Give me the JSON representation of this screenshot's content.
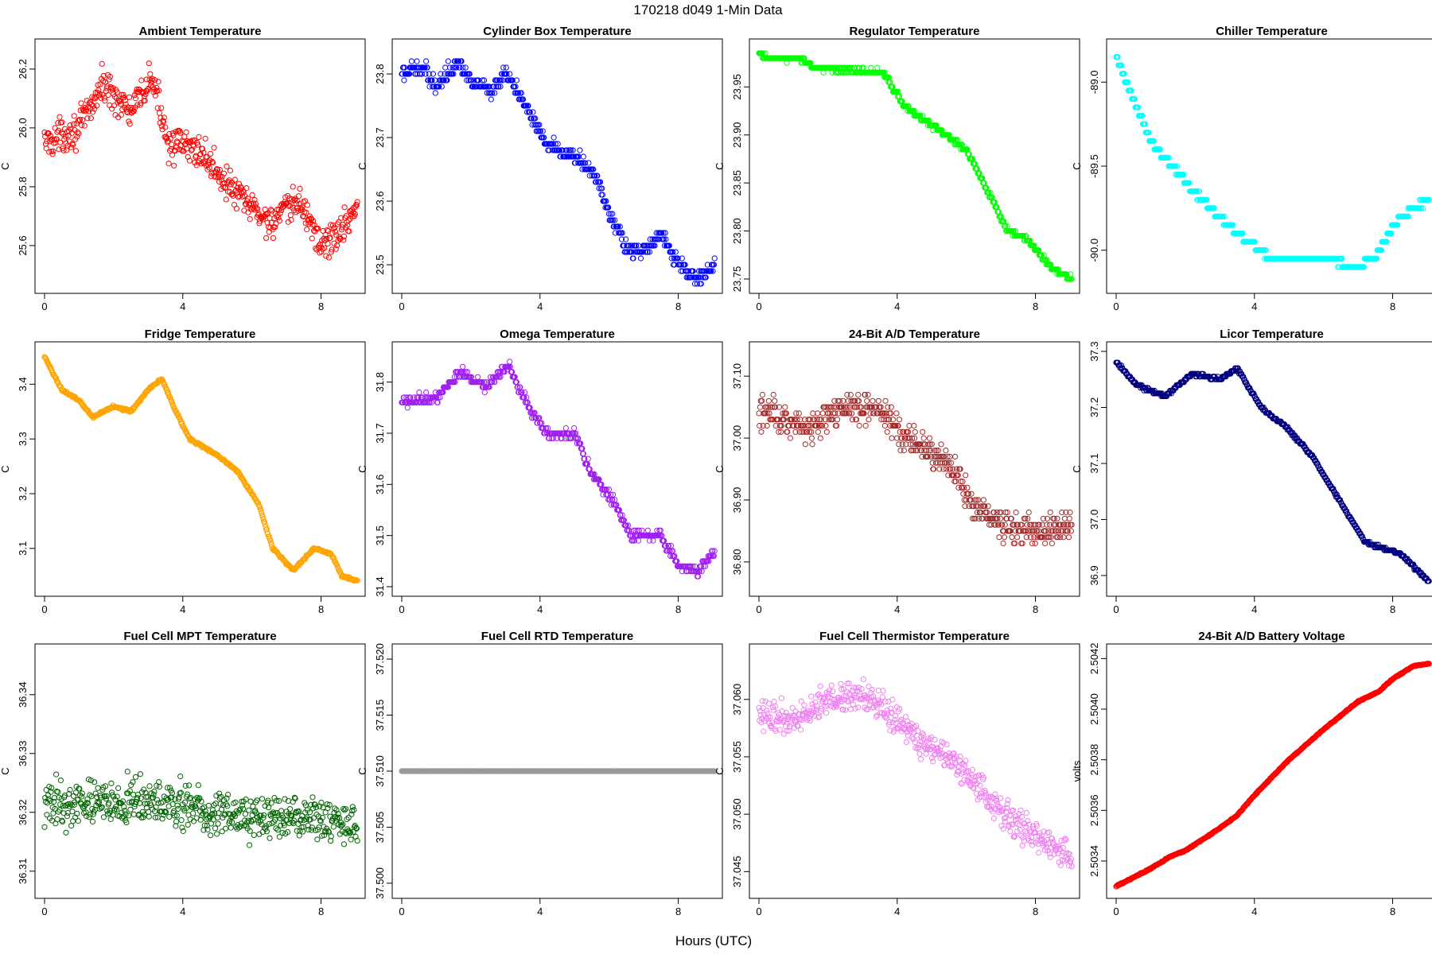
{
  "figure": {
    "title": "170218   d049   1-Min Data",
    "xlabel": "Hours (UTC)"
  },
  "chart_data": [
    {
      "type": "scatter",
      "title": "Ambient Temperature",
      "ylabel": "C",
      "color": "#ff0000",
      "xlim": [
        0,
        9
      ],
      "ylim": [
        25.47,
        26.27
      ],
      "xticks": [
        0,
        4,
        8
      ],
      "xtick_labels": [
        "0",
        "4",
        "8"
      ],
      "yticks": [
        25.6,
        25.8,
        26.0,
        26.2
      ],
      "ytick_labels": [
        "25.6",
        "25.8",
        "26.0",
        "26.2"
      ],
      "noise": 0.05,
      "quant": 0,
      "trend": [
        [
          0,
          25.95
        ],
        [
          1,
          26.0
        ],
        [
          1.7,
          26.15
        ],
        [
          2.5,
          26.05
        ],
        [
          3.1,
          26.17
        ],
        [
          3.6,
          25.95
        ],
        [
          4.5,
          25.92
        ],
        [
          5.5,
          25.78
        ],
        [
          6.5,
          25.68
        ],
        [
          7.4,
          25.75
        ],
        [
          8,
          25.6
        ],
        [
          8.6,
          25.65
        ],
        [
          9.05,
          25.75
        ]
      ]
    },
    {
      "type": "scatter",
      "title": "Cylinder Box Temperature",
      "ylabel": "C",
      "color": "#0000ff",
      "xlim": [
        0,
        9
      ],
      "ylim": [
        23.47,
        23.84
      ],
      "xticks": [
        0,
        4,
        8
      ],
      "xtick_labels": [
        "0",
        "4",
        "8"
      ],
      "yticks": [
        23.5,
        23.6,
        23.7,
        23.8
      ],
      "ytick_labels": [
        "23.5",
        "23.6",
        "23.7",
        "23.8"
      ],
      "noise": 0.01,
      "quant": 0.01,
      "trend": [
        [
          0,
          23.8
        ],
        [
          0.6,
          23.81
        ],
        [
          1.0,
          23.78
        ],
        [
          1.6,
          23.82
        ],
        [
          2.0,
          23.79
        ],
        [
          2.6,
          23.77
        ],
        [
          3.0,
          23.8
        ],
        [
          3.5,
          23.76
        ],
        [
          4.2,
          23.69
        ],
        [
          5.0,
          23.67
        ],
        [
          5.6,
          23.64
        ],
        [
          6.0,
          23.58
        ],
        [
          6.6,
          23.52
        ],
        [
          7.0,
          23.52
        ],
        [
          7.5,
          23.55
        ],
        [
          8.0,
          23.5
        ],
        [
          8.6,
          23.48
        ],
        [
          9.05,
          23.5
        ]
      ]
    },
    {
      "type": "scatter",
      "title": "Regulator Temperature",
      "ylabel": "C",
      "color": "#00ff00",
      "xlim": [
        0,
        9
      ],
      "ylim": [
        23.745,
        23.99
      ],
      "xticks": [
        0,
        4,
        8
      ],
      "xtick_labels": [
        "0",
        "4",
        "8"
      ],
      "yticks": [
        23.75,
        23.8,
        23.85,
        23.9,
        23.95
      ],
      "ytick_labels": [
        "23.75",
        "23.80",
        "23.85",
        "23.90",
        "23.95"
      ],
      "noise": 0.002,
      "quant": 0.005,
      "trend": [
        [
          0,
          23.985
        ],
        [
          0.2,
          23.98
        ],
        [
          1.2,
          23.98
        ],
        [
          1.6,
          23.97
        ],
        [
          3.6,
          23.965
        ],
        [
          4.2,
          23.93
        ],
        [
          5,
          23.91
        ],
        [
          6,
          23.885
        ],
        [
          7.2,
          23.8
        ],
        [
          7.8,
          23.79
        ],
        [
          8.5,
          23.76
        ],
        [
          9.05,
          23.75
        ]
      ]
    },
    {
      "type": "scatter",
      "title": "Chiller Temperature",
      "ylabel": "C",
      "color": "#00ffff",
      "xlim": [
        0,
        9
      ],
      "ylim": [
        -90.2,
        -88.8
      ],
      "xticks": [
        0,
        4,
        8
      ],
      "xtick_labels": [
        "0",
        "4",
        "8"
      ],
      "yticks": [
        -90.0,
        -89.5,
        -89.0
      ],
      "ytick_labels": [
        "-90.0",
        "-89.5",
        "-89.0"
      ],
      "noise": 0.01,
      "quant": 0.05,
      "trend": [
        [
          0,
          -88.85
        ],
        [
          0.5,
          -89.1
        ],
        [
          1.0,
          -89.35
        ],
        [
          1.6,
          -89.5
        ],
        [
          2.5,
          -89.7
        ],
        [
          3.5,
          -89.9
        ],
        [
          4.5,
          -90.05
        ],
        [
          6.2,
          -90.05
        ],
        [
          6.8,
          -90.1
        ],
        [
          7.5,
          -90.05
        ],
        [
          8,
          -89.85
        ],
        [
          8.6,
          -89.75
        ],
        [
          9.05,
          -89.7
        ]
      ]
    },
    {
      "type": "scatter",
      "title": "Fridge Temperature",
      "ylabel": "C",
      "color": "#ffa500",
      "xlim": [
        0,
        9
      ],
      "ylim": [
        3.03,
        3.46
      ],
      "xticks": [
        0,
        4,
        8
      ],
      "xtick_labels": [
        "0",
        "4",
        "8"
      ],
      "yticks": [
        3.1,
        3.2,
        3.3,
        3.4
      ],
      "ytick_labels": [
        "3.1",
        "3.2",
        "3.3",
        "3.4"
      ],
      "noise": 0.002,
      "quant": 0,
      "trend": [
        [
          0,
          3.45
        ],
        [
          0.5,
          3.39
        ],
        [
          1,
          3.37
        ],
        [
          1.4,
          3.34
        ],
        [
          2,
          3.36
        ],
        [
          2.5,
          3.35
        ],
        [
          3.0,
          3.39
        ],
        [
          3.4,
          3.41
        ],
        [
          3.8,
          3.35
        ],
        [
          4.2,
          3.3
        ],
        [
          5,
          3.27
        ],
        [
          5.6,
          3.24
        ],
        [
          6.2,
          3.18
        ],
        [
          6.6,
          3.1
        ],
        [
          7.2,
          3.06
        ],
        [
          7.8,
          3.1
        ],
        [
          8.3,
          3.09
        ],
        [
          8.6,
          3.05
        ],
        [
          9.05,
          3.04
        ]
      ]
    },
    {
      "type": "scatter",
      "title": "Omega Temperature",
      "ylabel": "C",
      "color": "#a020f0",
      "xlim": [
        0,
        9
      ],
      "ylim": [
        31.4,
        31.86
      ],
      "xticks": [
        0,
        4,
        8
      ],
      "xtick_labels": [
        "0",
        "4",
        "8"
      ],
      "yticks": [
        31.4,
        31.5,
        31.6,
        31.7,
        31.8
      ],
      "ytick_labels": [
        "31.4",
        "31.5",
        "31.6",
        "31.7",
        "31.8"
      ],
      "noise": 0.008,
      "quant": 0.01,
      "trend": [
        [
          0,
          31.76
        ],
        [
          1,
          31.77
        ],
        [
          1.7,
          31.82
        ],
        [
          2.4,
          31.79
        ],
        [
          3.1,
          31.83
        ],
        [
          3.6,
          31.76
        ],
        [
          4.2,
          31.7
        ],
        [
          5,
          31.7
        ],
        [
          5.5,
          31.62
        ],
        [
          6.2,
          31.56
        ],
        [
          6.6,
          31.5
        ],
        [
          7.5,
          31.5
        ],
        [
          8,
          31.44
        ],
        [
          8.6,
          31.43
        ],
        [
          9.05,
          31.47
        ]
      ]
    },
    {
      "type": "scatter",
      "title": "24-Bit A/D Temperature",
      "ylabel": "C",
      "color": "#a52a2a",
      "xlim": [
        0,
        9
      ],
      "ylim": [
        36.76,
        37.14
      ],
      "xticks": [
        0,
        4,
        8
      ],
      "xtick_labels": [
        "0",
        "4",
        "8"
      ],
      "yticks": [
        36.8,
        36.9,
        37.0,
        37.1
      ],
      "ytick_labels": [
        "36.80",
        "36.90",
        "37.00",
        "37.10"
      ],
      "noise": 0.022,
      "quant": 0.01,
      "trend": [
        [
          0,
          37.04
        ],
        [
          1.5,
          37.02
        ],
        [
          2.5,
          37.05
        ],
        [
          3.6,
          37.04
        ],
        [
          4.2,
          37.0
        ],
        [
          5,
          36.98
        ],
        [
          5.6,
          36.95
        ],
        [
          6.2,
          36.89
        ],
        [
          7,
          36.86
        ],
        [
          8,
          36.85
        ],
        [
          9.05,
          36.86
        ]
      ]
    },
    {
      "type": "scatter",
      "title": "Licor Temperature",
      "ylabel": "C",
      "color": "#000080",
      "xlim": [
        0,
        9
      ],
      "ylim": [
        36.88,
        37.3
      ],
      "xticks": [
        0,
        4,
        8
      ],
      "xtick_labels": [
        "0",
        "4",
        "8"
      ],
      "yticks": [
        36.9,
        37.0,
        37.1,
        37.2,
        37.3
      ],
      "ytick_labels": [
        "36.9",
        "37.0",
        "37.1",
        "37.2",
        "37.3"
      ],
      "noise": 0.002,
      "quant": 0.005,
      "trend": [
        [
          0,
          37.28
        ],
        [
          0.6,
          37.24
        ],
        [
          1.4,
          37.22
        ],
        [
          2.2,
          37.26
        ],
        [
          3.0,
          37.25
        ],
        [
          3.5,
          37.27
        ],
        [
          4.2,
          37.2
        ],
        [
          5,
          37.16
        ],
        [
          5.7,
          37.11
        ],
        [
          6.4,
          37.04
        ],
        [
          7.2,
          36.96
        ],
        [
          7.6,
          36.95
        ],
        [
          8.2,
          36.94
        ],
        [
          9.05,
          36.89
        ]
      ]
    },
    {
      "type": "scatter",
      "title": "Fuel Cell MPT Temperature",
      "ylabel": "C",
      "color": "#006400",
      "xlim": [
        0,
        9
      ],
      "ylim": [
        36.307,
        36.347
      ],
      "xticks": [
        0,
        4,
        8
      ],
      "xtick_labels": [
        "0",
        "4",
        "8"
      ],
      "yticks": [
        36.31,
        36.32,
        36.33,
        36.34
      ],
      "ytick_labels": [
        "36.31",
        "36.32",
        "36.33",
        "36.34"
      ],
      "noise": 0.0035,
      "quant": 0,
      "trend": [
        [
          0,
          36.321
        ],
        [
          2,
          36.322
        ],
        [
          4,
          36.321
        ],
        [
          6,
          36.319
        ],
        [
          9.05,
          36.318
        ]
      ]
    },
    {
      "type": "scatter",
      "title": "Fuel Cell RTD Temperature",
      "ylabel": "C",
      "color": "#999999",
      "xlim": [
        0,
        9
      ],
      "ylim": [
        37.4995,
        37.5205
      ],
      "xticks": [
        0,
        4,
        8
      ],
      "xtick_labels": [
        "0",
        "4",
        "8"
      ],
      "yticks": [
        37.5,
        37.505,
        37.51,
        37.515,
        37.52
      ],
      "ytick_labels": [
        "37.500",
        "37.505",
        "37.510",
        "37.515",
        "37.520"
      ],
      "noise": 0,
      "quant": 0,
      "trend": [
        [
          0,
          37.51
        ],
        [
          9.05,
          37.51
        ]
      ]
    },
    {
      "type": "scatter",
      "title": "Fuel Cell Thermistor Temperature",
      "ylabel": "C",
      "color": "#ee82ee",
      "xlim": [
        0,
        9
      ],
      "ylim": [
        37.0435,
        37.064
      ],
      "xticks": [
        0,
        4,
        8
      ],
      "xtick_labels": [
        "0",
        "4",
        "8"
      ],
      "yticks": [
        37.045,
        37.05,
        37.055,
        37.06
      ],
      "ytick_labels": [
        "37.045",
        "37.050",
        "37.055",
        "37.060"
      ],
      "noise": 0.0012,
      "quant": 0,
      "trend": [
        [
          0,
          37.059
        ],
        [
          1,
          37.058
        ],
        [
          2,
          37.06
        ],
        [
          3,
          37.0605
        ],
        [
          3.8,
          37.059
        ],
        [
          4.5,
          37.057
        ],
        [
          5.5,
          37.055
        ],
        [
          6.5,
          37.052
        ],
        [
          7.5,
          37.049
        ],
        [
          8.2,
          37.048
        ],
        [
          9.05,
          37.046
        ]
      ]
    },
    {
      "type": "scatter",
      "title": "24-Bit A/D Battery Voltage",
      "ylabel": "volts",
      "color": "#ff0000",
      "xlim": [
        0,
        9
      ],
      "ylim": [
        2.50329,
        2.50422
      ],
      "xticks": [
        0,
        4,
        8
      ],
      "xtick_labels": [
        "0",
        "4",
        "8"
      ],
      "yticks": [
        2.5034,
        2.5036,
        2.5038,
        2.504,
        2.5042
      ],
      "ytick_labels": [
        "2.5034",
        "2.5036",
        "2.5038",
        "2.5040",
        "2.5042"
      ],
      "noise": 2e-06,
      "quant": 0,
      "trend": [
        [
          0,
          2.5033
        ],
        [
          1,
          2.50337
        ],
        [
          1.6,
          2.50342
        ],
        [
          2,
          2.50344
        ],
        [
          3,
          2.50353
        ],
        [
          3.5,
          2.50358
        ],
        [
          4,
          2.50366
        ],
        [
          5,
          2.5038
        ],
        [
          6,
          2.50392
        ],
        [
          7,
          2.50403
        ],
        [
          7.6,
          2.50407
        ],
        [
          8,
          2.50412
        ],
        [
          8.6,
          2.50417
        ],
        [
          9.05,
          2.50418
        ]
      ]
    }
  ]
}
